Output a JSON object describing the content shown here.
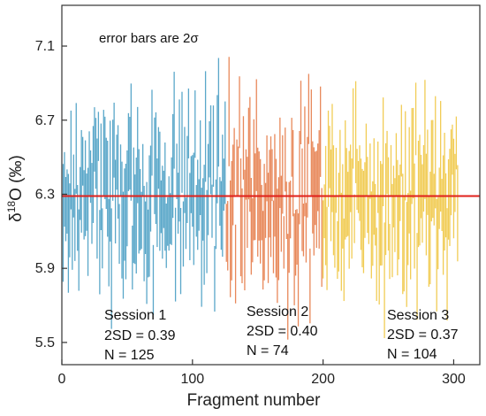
{
  "chart_data": {
    "type": "line",
    "title": "",
    "xlabel": "Fragment number",
    "ylabel": "δ18O (‰)",
    "ylabel_parts": {
      "prefix": "δ",
      "superscript": "18",
      "suffix": "O (‰)"
    },
    "annotation": "error bars are 2σ",
    "xlim": [
      0,
      320
    ],
    "ylim": [
      5.38,
      7.32
    ],
    "xticks": [
      0,
      100,
      200,
      300
    ],
    "yticks": [
      5.5,
      5.9,
      6.3,
      6.7,
      7.1
    ],
    "xtick_labels": [
      "0",
      "100",
      "200",
      "300"
    ],
    "ytick_labels": [
      "5.5",
      "5.9",
      "6.3",
      "6.7",
      "7.1"
    ],
    "reference_line": {
      "y": 6.29,
      "color": "#e0201b"
    },
    "sessions": [
      {
        "name": "Session 1",
        "x_start": 1,
        "x_end": 125,
        "mean": 6.29,
        "two_sd": 0.39,
        "n": 125,
        "color": "#5aa7c9",
        "labels": [
          "Session 1",
          "2SD = 0.39",
          "N = 125"
        ]
      },
      {
        "name": "Session 2",
        "x_start": 126,
        "x_end": 199,
        "mean": 6.29,
        "two_sd": 0.4,
        "n": 74,
        "color": "#e8885a",
        "labels": [
          "Session 2",
          "2SD = 0.40",
          "N = 74"
        ]
      },
      {
        "name": "Session 3",
        "x_start": 200,
        "x_end": 303,
        "mean": 6.29,
        "two_sd": 0.37,
        "n": 104,
        "color": "#f1cc55",
        "labels": [
          "Session 3",
          "2SD = 0.37",
          "N = 104"
        ]
      }
    ]
  }
}
